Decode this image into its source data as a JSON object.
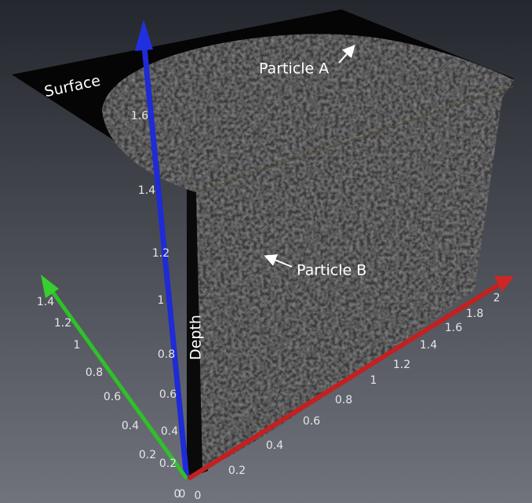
{
  "labels": {
    "surface": "Surface",
    "particle_a": "Particle A",
    "particle_b": "Particle B",
    "depth": "Depth"
  },
  "axes": {
    "blue": {
      "ticks": [
        0,
        0.2,
        0.4,
        0.6,
        0.8,
        1,
        1.2,
        1.4,
        1.6
      ]
    },
    "green": {
      "ticks": [
        0,
        0.2,
        0.4,
        0.6,
        0.8,
        1,
        1.2,
        1.4
      ]
    },
    "red": {
      "ticks": [
        0,
        0.2,
        0.4,
        0.6,
        0.8,
        1,
        1.2,
        1.4,
        1.6,
        1.8,
        2
      ]
    }
  }
}
